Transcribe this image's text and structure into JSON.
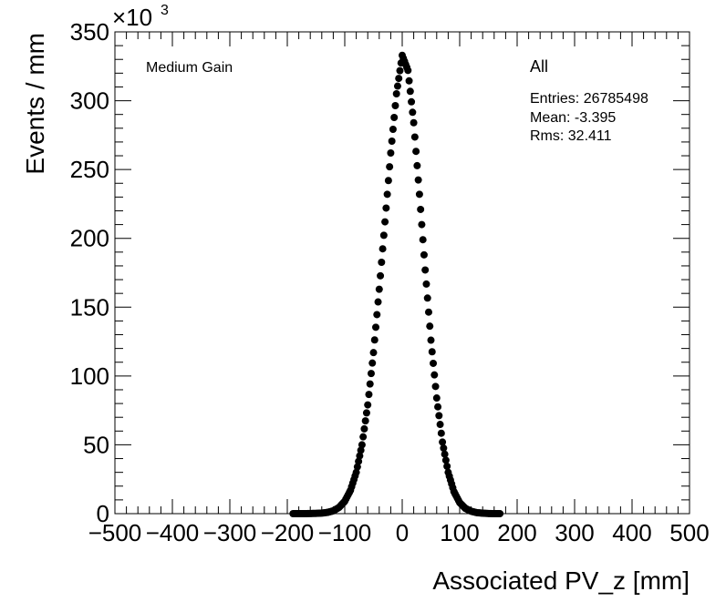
{
  "chart_data": {
    "type": "scatter",
    "xlabel": "Associated PV_z [mm]",
    "ylabel": "Events / mm",
    "y_exponent_base": "×10",
    "y_exponent_power": "3",
    "xlim": [
      -500,
      500
    ],
    "ylim": [
      0,
      350
    ],
    "x_ticks": [
      "−500",
      "−400",
      "−300",
      "−200",
      "−100",
      "0",
      "100",
      "200",
      "300",
      "400",
      "500"
    ],
    "y_ticks": [
      "0",
      "50",
      "100",
      "150",
      "200",
      "250",
      "300",
      "350"
    ],
    "annotation": "Medium Gain",
    "series": [
      {
        "name": "All",
        "stats": {
          "entries": "Entries: 26785498",
          "mean": "Mean: -3.395",
          "rms": "Rms: 32.411"
        },
        "x": [
          -190,
          -180,
          -170,
          -160,
          -150,
          -140,
          -130,
          -120,
          -110,
          -100,
          -90,
          -80,
          -70,
          -60,
          -50,
          -40,
          -30,
          -20,
          -10,
          0,
          10,
          20,
          30,
          40,
          50,
          60,
          70,
          80,
          90,
          100,
          110,
          120,
          130,
          140,
          150,
          160,
          170
        ],
        "y": [
          0.0,
          0.0,
          0.0,
          0.1,
          0.2,
          0.4,
          0.9,
          2.0,
          4.5,
          9.0,
          17.0,
          30.0,
          50.0,
          79.0,
          117.0,
          163.0,
          212.0,
          262.0,
          305.0,
          333.0,
          322.0,
          284.0,
          232.0,
          177.0,
          126.0,
          84.0,
          52.0,
          30.0,
          16.0,
          8.0,
          3.8,
          1.7,
          0.7,
          0.3,
          0.1,
          0.0,
          0.0
        ]
      }
    ],
    "grid": false,
    "legend": "top-right"
  }
}
